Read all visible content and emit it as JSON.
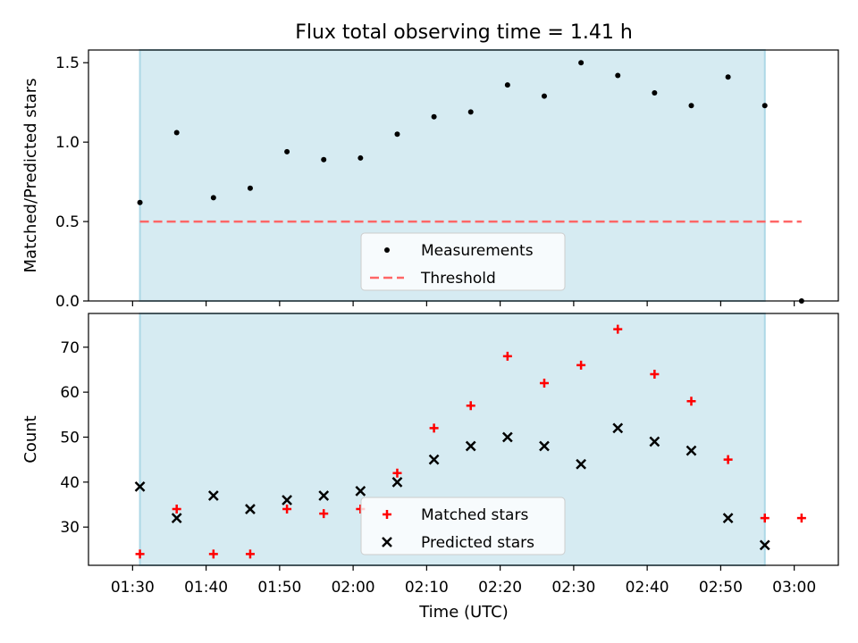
{
  "title": "Flux total observing time = 1.41 h",
  "xlabel": "Time (UTC)",
  "x_ticks": [
    "01:30",
    "01:40",
    "01:50",
    "02:00",
    "02:10",
    "02:20",
    "02:30",
    "02:40",
    "02:50",
    "03:00"
  ],
  "colors": {
    "shade": "#add8e6",
    "measure": "#000000",
    "threshold": "#ff6666",
    "matched": "#ff0000",
    "predicted": "#000000"
  },
  "chart_data": [
    {
      "type": "scatter",
      "ylabel": "Matched/Predicted stars",
      "ylim": [
        0,
        1.58
      ],
      "y_ticks": [
        "0.0",
        "0.5",
        "1.0",
        "1.5"
      ],
      "y_tick_values": [
        0,
        0.5,
        1.0,
        1.5
      ],
      "shaded_span": [
        "01:31",
        "02:56"
      ],
      "threshold": {
        "value": 0.5,
        "x_range": [
          "01:31",
          "03:01"
        ]
      },
      "legend": {
        "position": "lower center",
        "entries": [
          "Measurements",
          "Threshold"
        ]
      },
      "series": [
        {
          "name": "Measurements",
          "x": [
            "01:31",
            "01:36",
            "01:41",
            "01:46",
            "01:51",
            "01:56",
            "02:01",
            "02:06",
            "02:11",
            "02:16",
            "02:21",
            "02:26",
            "02:31",
            "02:36",
            "02:41",
            "02:46",
            "02:51",
            "02:56",
            "03:01"
          ],
          "y": [
            0.62,
            1.06,
            0.65,
            0.71,
            0.94,
            0.89,
            0.9,
            1.05,
            1.16,
            1.19,
            1.36,
            1.29,
            1.5,
            1.42,
            1.31,
            1.23,
            1.41,
            1.23,
            0.0
          ]
        }
      ]
    },
    {
      "type": "scatter",
      "ylabel": "Count",
      "ylim": [
        21.5,
        77.5
      ],
      "y_ticks": [
        "30",
        "40",
        "50",
        "60",
        "70"
      ],
      "y_tick_values": [
        30,
        40,
        50,
        60,
        70
      ],
      "shaded_span": [
        "01:31",
        "02:56"
      ],
      "legend": {
        "position": "lower center",
        "entries": [
          "Matched stars",
          "Predicted stars"
        ]
      },
      "series": [
        {
          "name": "Matched stars",
          "marker": "plus",
          "x": [
            "01:31",
            "01:36",
            "01:41",
            "01:46",
            "01:51",
            "01:56",
            "02:01",
            "02:06",
            "02:11",
            "02:16",
            "02:21",
            "02:26",
            "02:31",
            "02:36",
            "02:41",
            "02:46",
            "02:51",
            "02:56",
            "03:01"
          ],
          "y": [
            24,
            34,
            24,
            24,
            34,
            33,
            34,
            42,
            52,
            57,
            68,
            62,
            66,
            74,
            64,
            58,
            45,
            32,
            32
          ]
        },
        {
          "name": "Predicted stars",
          "marker": "x",
          "x": [
            "01:31",
            "01:36",
            "01:41",
            "01:46",
            "01:51",
            "01:56",
            "02:01",
            "02:06",
            "02:11",
            "02:16",
            "02:21",
            "02:26",
            "02:31",
            "02:36",
            "02:41",
            "02:46",
            "02:51",
            "02:56"
          ],
          "y": [
            39,
            32,
            37,
            34,
            36,
            37,
            38,
            40,
            45,
            48,
            50,
            48,
            44,
            52,
            49,
            47,
            32,
            26
          ]
        }
      ]
    }
  ]
}
